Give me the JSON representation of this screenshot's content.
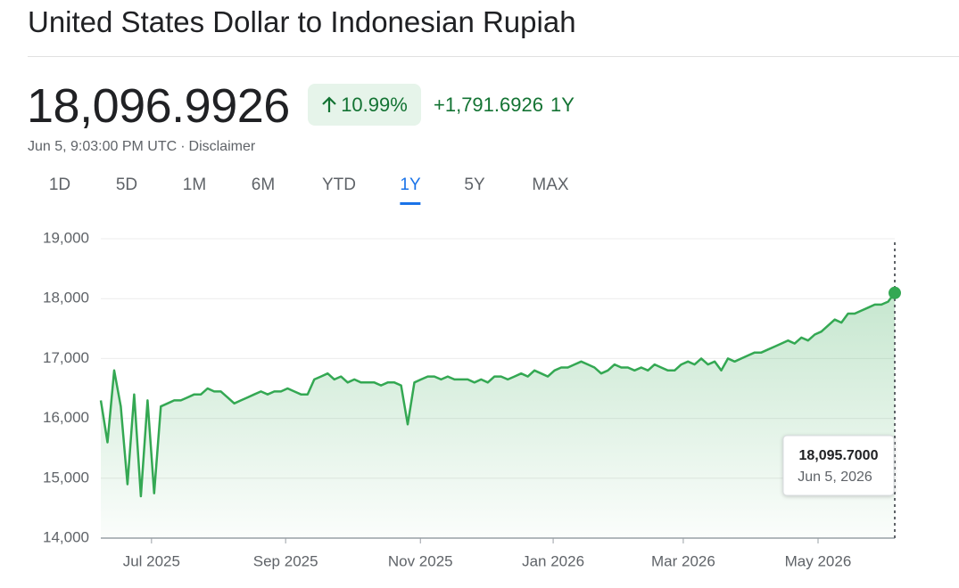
{
  "header": {
    "title": "United States Dollar to Indonesian Rupiah",
    "price": "18,096.9926",
    "change_percent": "10.99%",
    "change": "+1,791.6926",
    "period": "1Y",
    "timestamp": "Jun 5, 9:03:00 PM UTC",
    "separator": "·",
    "disclaimer": "Disclaimer"
  },
  "tabs": [
    "1D",
    "5D",
    "1M",
    "6M",
    "YTD",
    "1Y",
    "5Y",
    "MAX"
  ],
  "selected_tab": "1Y",
  "chart_data": {
    "type": "line",
    "series": [
      {
        "name": "USD/IDR",
        "color": "#34a853",
        "values": [
          16300,
          15600,
          16800,
          16200,
          14900,
          16400,
          14700,
          16300,
          14750,
          16200,
          16250,
          16300,
          16300,
          16350,
          16400,
          16400,
          16500,
          16450,
          16450,
          16350,
          16250,
          16300,
          16350,
          16400,
          16450,
          16400,
          16450,
          16450,
          16500,
          16450,
          16400,
          16400,
          16650,
          16700,
          16750,
          16650,
          16700,
          16600,
          16650,
          16600,
          16600,
          16600,
          16550,
          16600,
          16600,
          16550,
          15900,
          16600,
          16650,
          16700,
          16700,
          16650,
          16700,
          16650,
          16650,
          16650,
          16600,
          16650,
          16600,
          16700,
          16700,
          16650,
          16700,
          16750,
          16700,
          16800,
          16750,
          16700,
          16800,
          16850,
          16850,
          16900,
          16950,
          16900,
          16850,
          16750,
          16800,
          16900,
          16850,
          16850,
          16800,
          16850,
          16800,
          16900,
          16850,
          16800,
          16800,
          16900,
          16950,
          16900,
          17000,
          16900,
          16950,
          16800,
          17000,
          16950,
          17000,
          17050,
          17100,
          17100,
          17150,
          17200,
          17250,
          17300,
          17250,
          17350,
          17300,
          17400,
          17450,
          17550,
          17650,
          17600,
          17750,
          17750,
          17800,
          17850,
          17900,
          17900,
          17950,
          18095.7
        ]
      }
    ],
    "xlim": [
      0,
      119
    ],
    "xticks": [
      {
        "value": 7.6,
        "label": "Jul 2025"
      },
      {
        "value": 27.7,
        "label": "Sep 2025"
      },
      {
        "value": 47.9,
        "label": "Nov 2025"
      },
      {
        "value": 67.8,
        "label": "Jan 2026"
      },
      {
        "value": 87.3,
        "label": "Mar 2026"
      },
      {
        "value": 107.5,
        "label": "May 2026"
      }
    ],
    "ylim": [
      14000,
      19000
    ],
    "yticks": [
      {
        "value": 14000,
        "label": "14,000"
      },
      {
        "value": 15000,
        "label": "15,000"
      },
      {
        "value": 16000,
        "label": "16,000"
      },
      {
        "value": 17000,
        "label": "17,000"
      },
      {
        "value": 18000,
        "label": "18,000"
      },
      {
        "value": 19000,
        "label": "19,000"
      }
    ],
    "grid": true,
    "tooltip": {
      "label": "18,095.7000",
      "date": "Jun 5, 2026"
    }
  }
}
